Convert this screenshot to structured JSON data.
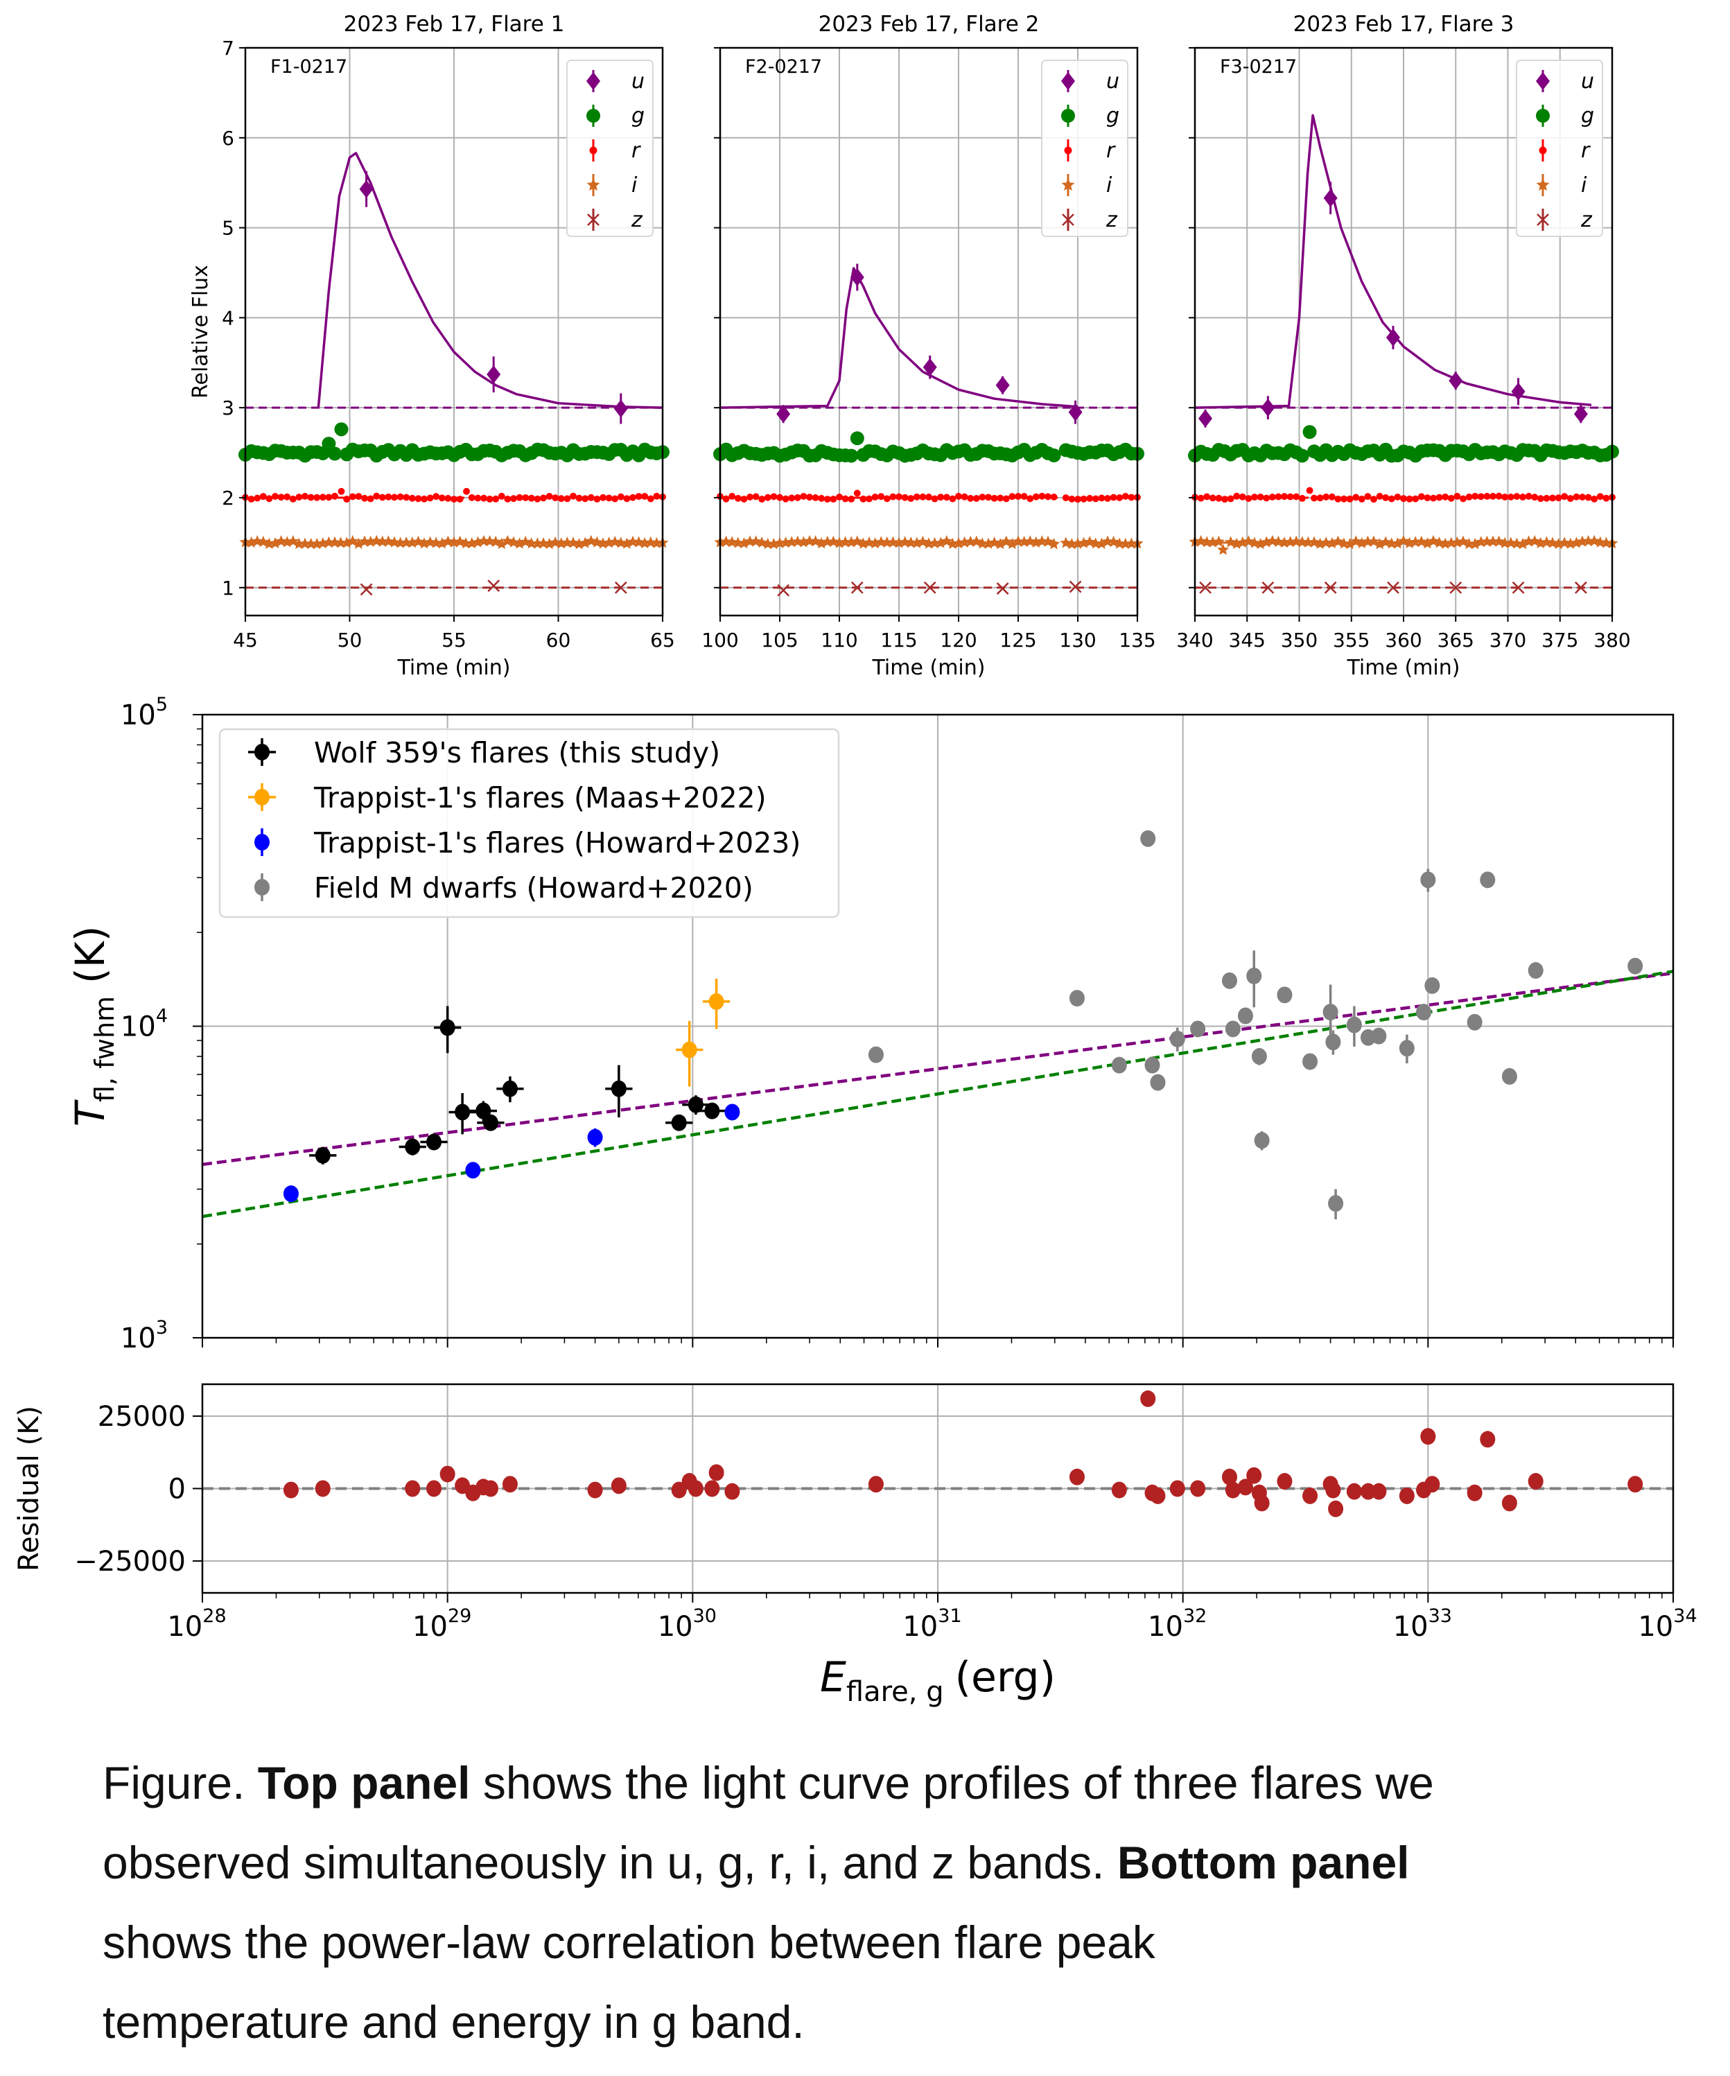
{
  "top_panels": [
    {
      "title": "2023 Feb 17, Flare 1",
      "tag": "F1-0217",
      "xlabel": "Time (min)",
      "ylabel": "Relative Flux",
      "xlim": [
        45,
        65
      ],
      "xticks": [
        45,
        50,
        55,
        60,
        65
      ],
      "ylim": [
        0.69,
        7
      ],
      "yticks": [
        1,
        2,
        3,
        4,
        5,
        6,
        7
      ],
      "show_ytick_labels": true,
      "u_points": [
        [
          50.8,
          5.43,
          0.2
        ],
        [
          56.9,
          3.37,
          0.2
        ],
        [
          63.0,
          2.99,
          0.17
        ]
      ],
      "u_fit": [
        [
          48.5,
          3
        ],
        [
          49,
          4.3
        ],
        [
          49.5,
          5.35
        ],
        [
          50,
          5.78
        ],
        [
          50.3,
          5.83
        ],
        [
          51,
          5.5
        ],
        [
          52,
          4.9
        ],
        [
          53,
          4.4
        ],
        [
          54,
          3.95
        ],
        [
          55,
          3.62
        ],
        [
          56,
          3.4
        ],
        [
          57,
          3.25
        ],
        [
          58,
          3.15
        ],
        [
          60,
          3.05
        ],
        [
          63,
          3.01
        ],
        [
          65,
          3.0
        ]
      ],
      "g_deviations": [
        [
          49.0,
          2.6
        ],
        [
          49.6,
          2.76
        ]
      ],
      "r_deviations": [
        [
          49.6,
          2.07
        ],
        [
          55.6,
          2.07
        ]
      ],
      "i_deviations": [],
      "z_points": [
        [
          50.8,
          0.98
        ],
        [
          56.9,
          1.02
        ],
        [
          63.0,
          1.0
        ]
      ],
      "gaps": []
    },
    {
      "title": "2023 Feb 17, Flare 2",
      "tag": "F2-0217",
      "xlabel": "Time (min)",
      "ylabel": "",
      "xlim": [
        100,
        135
      ],
      "xticks": [
        100,
        105,
        110,
        115,
        120,
        125,
        130,
        135
      ],
      "ylim": [
        0.69,
        7
      ],
      "yticks": [
        1,
        2,
        3,
        4,
        5,
        6,
        7
      ],
      "show_ytick_labels": false,
      "u_points": [
        [
          105.3,
          2.93,
          0.1
        ],
        [
          111.5,
          4.45,
          0.15
        ],
        [
          117.6,
          3.45,
          0.13
        ],
        [
          123.7,
          3.25,
          0.1
        ],
        [
          129.8,
          2.95,
          0.13
        ]
      ],
      "u_fit": [
        [
          100,
          3
        ],
        [
          109,
          3.02
        ],
        [
          110,
          3.3
        ],
        [
          110.6,
          4.1
        ],
        [
          111.2,
          4.55
        ],
        [
          112,
          4.35
        ],
        [
          113,
          4.05
        ],
        [
          115,
          3.65
        ],
        [
          117,
          3.4
        ],
        [
          120,
          3.2
        ],
        [
          123,
          3.1
        ],
        [
          127,
          3.04
        ],
        [
          130,
          3.01
        ]
      ],
      "g_deviations": [
        [
          111.5,
          2.66
        ]
      ],
      "r_deviations": [
        [
          111.5,
          2.05
        ]
      ],
      "i_deviations": [],
      "z_points": [
        [
          105.3,
          0.97
        ],
        [
          111.5,
          1.0
        ],
        [
          117.6,
          1.0
        ],
        [
          123.7,
          0.99
        ],
        [
          129.8,
          1.01
        ]
      ],
      "gaps": [
        [
          128.2,
          128.9
        ]
      ]
    },
    {
      "title": "2023 Feb 17, Flare 3",
      "tag": "F3-0217",
      "xlabel": "Time (min)",
      "ylabel": "",
      "xlim": [
        340,
        380
      ],
      "xticks": [
        340,
        345,
        350,
        355,
        360,
        365,
        370,
        375,
        380
      ],
      "ylim": [
        0.69,
        7
      ],
      "yticks": [
        1,
        2,
        3,
        4,
        5,
        6,
        7
      ],
      "show_ytick_labels": false,
      "u_points": [
        [
          341,
          2.88,
          0.1
        ],
        [
          347,
          3.0,
          0.13
        ],
        [
          353,
          5.33,
          0.18
        ],
        [
          359,
          3.78,
          0.13
        ],
        [
          365,
          3.3,
          0.1
        ],
        [
          371,
          3.18,
          0.15
        ],
        [
          377,
          2.93,
          0.1
        ]
      ],
      "u_fit": [
        [
          340,
          3
        ],
        [
          349,
          3.02
        ],
        [
          350,
          4
        ],
        [
          350.8,
          5.6
        ],
        [
          351.3,
          6.25
        ],
        [
          352,
          5.9
        ],
        [
          354,
          5.0
        ],
        [
          356,
          4.4
        ],
        [
          358,
          3.95
        ],
        [
          360,
          3.68
        ],
        [
          363,
          3.42
        ],
        [
          366,
          3.27
        ],
        [
          370,
          3.15
        ],
        [
          375,
          3.06
        ],
        [
          378,
          3.03
        ]
      ],
      "g_deviations": [
        [
          351,
          2.73
        ]
      ],
      "r_deviations": [
        [
          351,
          2.08
        ]
      ],
      "i_deviations": [
        [
          342.7,
          1.42
        ]
      ],
      "z_points": [
        [
          341,
          1.0
        ],
        [
          347,
          1.0
        ],
        [
          353,
          1.0
        ],
        [
          359,
          1.0
        ],
        [
          365,
          1.0
        ],
        [
          371,
          1.0
        ],
        [
          377,
          1.0
        ]
      ],
      "gaps": []
    }
  ],
  "bands": [
    {
      "label": "u",
      "color": "#800080",
      "baseline": 3.0,
      "marker": "diamond"
    },
    {
      "label": "g",
      "color": "#008000",
      "baseline": 2.5,
      "marker": "circle"
    },
    {
      "label": "r",
      "color": "#ff0000",
      "baseline": 2.0,
      "marker": "point"
    },
    {
      "label": "i",
      "color": "#d2691e",
      "baseline": 1.5,
      "marker": "star"
    },
    {
      "label": "z",
      "color": "#a52a2a",
      "baseline": 1.0,
      "marker": "x"
    }
  ],
  "chart_data": [
    {
      "type": "scatter",
      "xlabel_main": "E",
      "xlabel_sub": "flare, g",
      "xlabel_unit": "(erg)",
      "ylabel_main": "T",
      "ylabel_sub": "fl, fwhm",
      "ylabel_unit": "(K)",
      "xscale": "log",
      "yscale": "log",
      "xlim": [
        1e+28,
        1e+34
      ],
      "ylim": [
        1000.0,
        100000.0
      ],
      "xtick_exponents": [
        "28",
        "29",
        "30",
        "31",
        "32",
        "33",
        "34"
      ],
      "ytick_exponents": [
        "3",
        "4",
        "5"
      ],
      "grid": true,
      "legend_placement": "top-left",
      "series": [
        {
          "name": "Wolf 359's flares (this study)",
          "color": "#000000",
          "points": [
            [
              3.1e+28,
              3850,
              250
            ],
            [
              7.2e+28,
              4100,
              250
            ],
            [
              8.8e+28,
              4250,
              250
            ],
            [
              1e+29,
              9900,
              1700
            ],
            [
              1.15e+29,
              5300,
              800
            ],
            [
              1.4e+29,
              5350,
              400
            ],
            [
              1.5e+29,
              4900,
              250
            ],
            [
              1.8e+29,
              6300,
              600
            ],
            [
              5e+29,
              6300,
              1200
            ],
            [
              8.8e+29,
              4900,
              250
            ],
            [
              1.03e+30,
              5600,
              400
            ],
            [
              1.2e+30,
              5350,
              250
            ]
          ]
        },
        {
          "name": "Trappist-1's flares (Maas+2022)",
          "color": "#ffa500",
          "points": [
            [
              9.7e+29,
              8400,
              2000
            ],
            [
              1.25e+30,
              12000,
              2200
            ]
          ]
        },
        {
          "name": "Trappist-1's flares (Howard+2023)",
          "color": "#0000ff",
          "points": [
            [
              2.3e+28,
              2900,
              100
            ],
            [
              1.27e+29,
              3450,
              150
            ],
            [
              4e+29,
              4400,
              300
            ],
            [
              1.45e+30,
              5300,
              300
            ]
          ]
        },
        {
          "name": "Field M dwarfs (Howard+2020)",
          "color": "#808080",
          "points": [
            [
              5.6e+30,
              8100,
              300
            ],
            [
              3.7e+31,
              12300,
              500
            ],
            [
              5.5e+31,
              7500,
              300
            ],
            [
              7.2e+31,
              40000,
              1500
            ],
            [
              7.5e+31,
              7500,
              300
            ],
            [
              7.9e+31,
              6600,
              300
            ],
            [
              9.5e+31,
              9100,
              800
            ],
            [
              1.15e+32,
              9800,
              300
            ],
            [
              1.55e+32,
              14000,
              800
            ],
            [
              1.6e+32,
              9800,
              300
            ],
            [
              1.8e+32,
              10800,
              400
            ],
            [
              1.95e+32,
              14500,
              3000
            ],
            [
              2.05e+32,
              8000,
              500
            ],
            [
              2.1e+32,
              4300,
              300
            ],
            [
              2.6e+32,
              12600,
              400
            ],
            [
              3.3e+32,
              7700,
              300
            ],
            [
              4e+32,
              11100,
              2500
            ],
            [
              4.1e+32,
              8900,
              800
            ],
            [
              4.2e+32,
              2700,
              300
            ],
            [
              5e+32,
              10100,
              1500
            ],
            [
              5.7e+32,
              9200,
              300
            ],
            [
              6.3e+32,
              9300,
              300
            ],
            [
              8.2e+32,
              8500,
              900
            ],
            [
              9.6e+32,
              11100,
              300
            ],
            [
              1e+33,
              29500,
              2500
            ],
            [
              1.04e+33,
              13500,
              600
            ],
            [
              1.55e+33,
              10300,
              300
            ],
            [
              1.75e+33,
              29500,
              1200
            ],
            [
              2.15e+33,
              6900,
              300
            ],
            [
              2.75e+33,
              15100,
              400
            ],
            [
              7e+33,
              15600,
              400
            ]
          ]
        }
      ],
      "fit_lines": [
        {
          "color": "#800080",
          "points": [
            [
              1e+28,
              3600
            ],
            [
              1e+34,
              14800
            ]
          ]
        },
        {
          "color": "#008000",
          "points": [
            [
              1e+28,
              2450
            ],
            [
              1e+34,
              15000
            ]
          ]
        }
      ]
    },
    {
      "type": "scatter",
      "ylabel": "Residual (K)",
      "xscale": "log",
      "xlim": [
        1e+28,
        1e+34
      ],
      "ylim": [
        -36000,
        36000
      ],
      "yticks": [
        25000,
        0,
        -25000
      ],
      "ytick_labels": [
        "25000",
        "0",
        "−25000"
      ],
      "color": "#b22222",
      "zero_line": 0,
      "points": [
        [
          2.3e+28,
          -500
        ],
        [
          3.1e+28,
          0
        ],
        [
          7.2e+28,
          0
        ],
        [
          8.8e+28,
          0
        ],
        [
          1e+29,
          5000
        ],
        [
          1.15e+29,
          1000
        ],
        [
          1.27e+29,
          -1500
        ],
        [
          1.4e+29,
          500
        ],
        [
          1.5e+29,
          0
        ],
        [
          1.8e+29,
          1500
        ],
        [
          4e+29,
          -500
        ],
        [
          5e+29,
          1000
        ],
        [
          8.8e+29,
          -500
        ],
        [
          9.7e+29,
          2500
        ],
        [
          1.03e+30,
          0
        ],
        [
          1.2e+30,
          0
        ],
        [
          1.25e+30,
          5500
        ],
        [
          1.45e+30,
          -1000
        ],
        [
          5.6e+30,
          1500
        ],
        [
          3.7e+31,
          4000
        ],
        [
          5.5e+31,
          -500
        ],
        [
          7.2e+31,
          31000
        ],
        [
          7.5e+31,
          -1500
        ],
        [
          7.9e+31,
          -2500
        ],
        [
          9.5e+31,
          0
        ],
        [
          1.15e+32,
          0
        ],
        [
          1.55e+32,
          4000
        ],
        [
          1.6e+32,
          -500
        ],
        [
          1.8e+32,
          500
        ],
        [
          1.95e+32,
          4500
        ],
        [
          2.05e+32,
          -1500
        ],
        [
          2.1e+32,
          -5000
        ],
        [
          2.6e+32,
          2500
        ],
        [
          3.3e+32,
          -2500
        ],
        [
          4e+32,
          1500
        ],
        [
          4.1e+32,
          -500
        ],
        [
          4.2e+32,
          -7000
        ],
        [
          5e+32,
          -1000
        ],
        [
          5.7e+32,
          -1000
        ],
        [
          6.3e+32,
          -1000
        ],
        [
          8.2e+32,
          -2500
        ],
        [
          9.6e+32,
          -500
        ],
        [
          1e+33,
          18000
        ],
        [
          1.04e+33,
          1500
        ],
        [
          1.55e+33,
          -1500
        ],
        [
          1.75e+33,
          17000
        ],
        [
          2.15e+33,
          -5000
        ],
        [
          2.75e+33,
          2500
        ],
        [
          7e+33,
          1500
        ]
      ]
    }
  ],
  "caption": {
    "lines": [
      [
        {
          "t": "Figure. "
        },
        {
          "t": "Top panel",
          "b": true
        },
        {
          "t": " shows the light curve profiles of three flares we"
        }
      ],
      [
        {
          "t": "observed simultaneously in u, g, r, i, and z bands. "
        },
        {
          "t": "Bottom panel",
          "b": true
        }
      ],
      [
        {
          "t": "shows the power-law correlation between flare peak"
        }
      ],
      [
        {
          "t": "temperature and energy in g band."
        }
      ]
    ]
  }
}
